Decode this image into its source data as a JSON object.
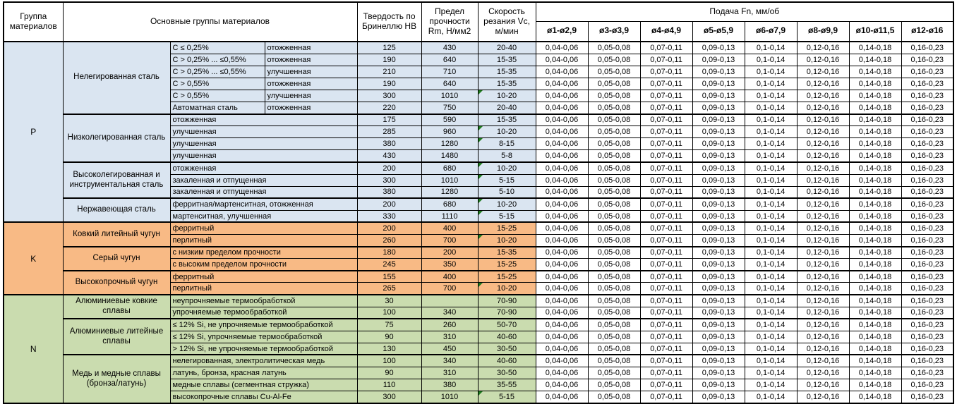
{
  "colors": {
    "p_blue": "#DAE5F1",
    "k_orange": "#F8BA85",
    "n_green": "#CADCAF",
    "flag_green": "#1E7B1E",
    "border_black": "#000000"
  },
  "table": {
    "headers": {
      "group": "Группа материалов",
      "main_groups": "Основные группы материалов",
      "hardness": "Твердость по Бринеллю HB",
      "strength": "Предел прочности Rm, Н/мм2",
      "speed": "Скорость резания Vc, м/мин",
      "feed": "Подача Fn, мм/об",
      "feed_columns": [
        "ø1-ø2,9",
        "ø3-ø3,9",
        "ø4-ø4,9",
        "ø5-ø5,9",
        "ø6-ø7,9",
        "ø8-ø9,9",
        "ø10-ø11,5",
        "ø12-ø16"
      ]
    },
    "feed_values": [
      "0,04-0,06",
      "0,05-0,08",
      "0,07-0,11",
      "0,09-0,13",
      "0,1-0,14",
      "0,12-0,16",
      "0,14-0,18",
      "0,16-0,23"
    ],
    "groups": [
      {
        "code": "P",
        "color_key": "p_blue",
        "subgroups": [
          {
            "name": "Нелегированная сталь",
            "rows": [
              {
                "m1": "C ≤ 0,25%",
                "m2": "отожженная",
                "hb": "125",
                "rm": "430",
                "vc": "20-40",
                "flag": false
              },
              {
                "m1": "C > 0,25% ... ≤0,55%",
                "m2": "отожженная",
                "hb": "190",
                "rm": "640",
                "vc": "15-35",
                "flag": false
              },
              {
                "m1": "C > 0,25% ... ≤0,55%",
                "m2": "улучшенная",
                "hb": "210",
                "rm": "710",
                "vc": "15-35",
                "flag": false
              },
              {
                "m1": "C > 0,55%",
                "m2": "отожженная",
                "hb": "190",
                "rm": "640",
                "vc": "15-35",
                "flag": false
              },
              {
                "m1": "C > 0,55%",
                "m2": "улучшенная",
                "hb": "300",
                "rm": "1010",
                "vc": "10-20",
                "flag": true
              },
              {
                "m1": "Автоматная сталь",
                "m2": "отожженная",
                "hb": "220",
                "rm": "750",
                "vc": "20-40",
                "flag": false
              }
            ]
          },
          {
            "name": "Низколегированная сталь",
            "rows": [
              {
                "m": "отожженная",
                "hb": "175",
                "rm": "590",
                "vc": "15-35",
                "flag": false
              },
              {
                "m": "улучшенная",
                "hb": "285",
                "rm": "960",
                "vc": "10-20",
                "flag": true
              },
              {
                "m": "улучшенная",
                "hb": "380",
                "rm": "1280",
                "vc": "8-15",
                "flag": true
              },
              {
                "m": "улучшенная",
                "hb": "430",
                "rm": "1480",
                "vc": "5-8",
                "flag": false
              }
            ]
          },
          {
            "name": "Высоколегированная и инструментальная сталь",
            "rows": [
              {
                "m": "отожженная",
                "hb": "200",
                "rm": "680",
                "vc": "10-20",
                "flag": true
              },
              {
                "m": "закаленная и отпущенная",
                "hb": "300",
                "rm": "1010",
                "vc": "5-15",
                "flag": true
              },
              {
                "m": "закаленная и отпущенная",
                "hb": "380",
                "rm": "1280",
                "vc": "5-10",
                "flag": false
              }
            ]
          },
          {
            "name": "Нержавеющая сталь",
            "rows": [
              {
                "m": "ферритная/мартенситная, отожженная",
                "hb": "200",
                "rm": "680",
                "vc": "10-20",
                "flag": true
              },
              {
                "m": "мартенситная, улучшенная",
                "hb": "330",
                "rm": "1110",
                "vc": "5-15",
                "flag": true
              }
            ]
          }
        ]
      },
      {
        "code": "K",
        "color_key": "k_orange",
        "subgroups": [
          {
            "name": "Ковкий литейный чугун",
            "rows": [
              {
                "m": "ферритный",
                "hb": "200",
                "rm": "400",
                "vc": "15-25",
                "flag": false
              },
              {
                "m": "перлитный",
                "hb": "260",
                "rm": "700",
                "vc": "10-20",
                "flag": true
              }
            ]
          },
          {
            "name": "Серый чугун",
            "rows": [
              {
                "m": "с низким пределом прочности",
                "hb": "180",
                "rm": "200",
                "vc": "15-35",
                "flag": false
              },
              {
                "m": "с высоким пределом прочности",
                "hb": "245",
                "rm": "350",
                "vc": "15-25",
                "flag": false
              }
            ]
          },
          {
            "name": "Высокопрочный чугун",
            "rows": [
              {
                "m": "ферритный",
                "hb": "155",
                "rm": "400",
                "vc": "15-25",
                "flag": false
              },
              {
                "m": "перлитный",
                "hb": "265",
                "rm": "700",
                "vc": "10-20",
                "flag": true
              }
            ]
          }
        ]
      },
      {
        "code": "N",
        "color_key": "n_green",
        "subgroups": [
          {
            "name": "Алюминиевые ковкие сплавы",
            "rows": [
              {
                "m": "неупрочняемые термообработкой",
                "hb": "30",
                "rm": "",
                "vc": "70-90",
                "flag": false
              },
              {
                "m": "упрочняемые термообработкой",
                "hb": "100",
                "rm": "340",
                "vc": "70-90",
                "flag": false
              }
            ]
          },
          {
            "name": "Алюминиевые литейные сплавы",
            "rows": [
              {
                "m": "≤ 12% Si, не упрочняемые термообработкой",
                "hb": "75",
                "rm": "260",
                "vc": "50-70",
                "flag": false
              },
              {
                "m": "≤ 12% Si, упрочняемые термообработкой",
                "hb": "90",
                "rm": "310",
                "vc": "40-60",
                "flag": false
              },
              {
                "m": "> 12% Si, не упрочняемые термообработкой",
                "hb": "130",
                "rm": "450",
                "vc": "30-50",
                "flag": false
              }
            ]
          },
          {
            "name": "Медь и медные сплавы (бронза/латунь)",
            "rows": [
              {
                "m": "нелегированная, электролитическая медь",
                "hb": "100",
                "rm": "340",
                "vc": "40-60",
                "flag": false
              },
              {
                "m": "латунь, бронза, красная латунь",
                "hb": "90",
                "rm": "310",
                "vc": "30-50",
                "flag": false
              },
              {
                "m": "медные сплавы (сегментная стружка)",
                "hb": "110",
                "rm": "380",
                "vc": "35-55",
                "flag": false
              },
              {
                "m": "высокопрочные сплавы Cu-Al-Fe",
                "hb": "300",
                "rm": "1010",
                "vc": "5-15",
                "flag": true
              }
            ]
          }
        ]
      }
    ]
  }
}
